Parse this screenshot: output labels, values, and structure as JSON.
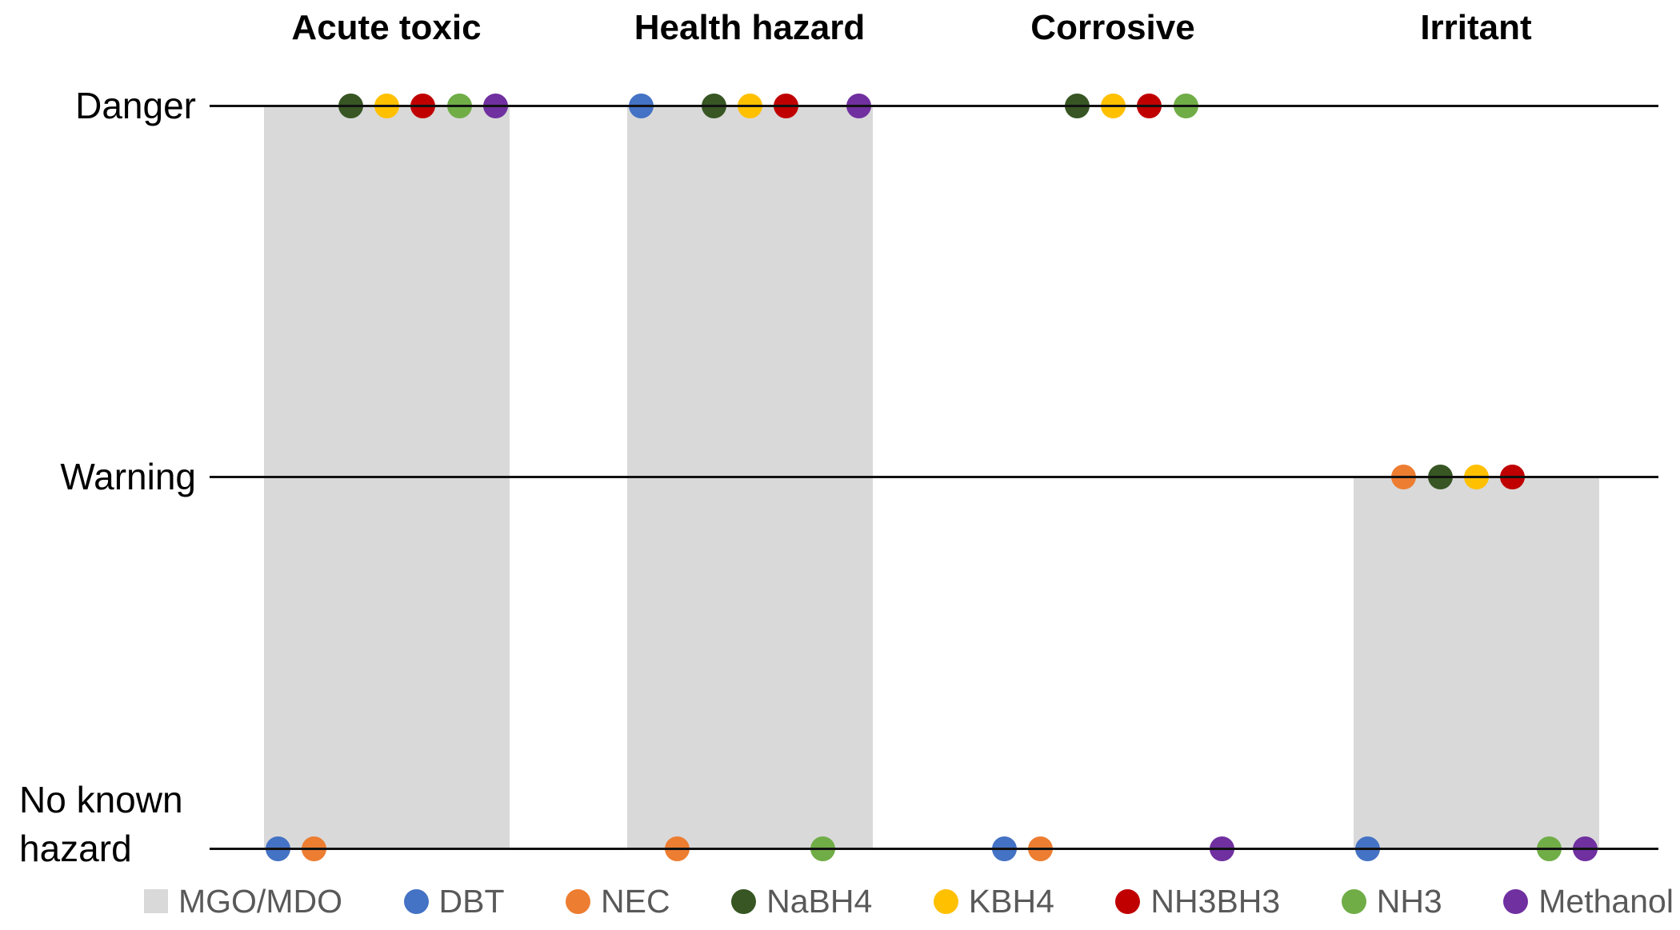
{
  "chart_data": {
    "type": "scatter",
    "title": "",
    "description": "Hazard classification chart: gray bars (MGO/MDO) and colored dots for seven substances across four hazard categories, levels Danger / Warning / No known hazard",
    "categories": [
      "Acute toxic",
      "Health hazard",
      "Corrosive",
      "Irritant"
    ],
    "y_axis": {
      "levels": [
        "Danger",
        "Warning",
        "No known hazard"
      ],
      "no_known_hazard_wrapped": [
        "No known",
        "hazard"
      ]
    },
    "bar_series": {
      "name": "MGO/MDO",
      "color": "#D9D9D9",
      "values": [
        "Danger",
        "Danger",
        null,
        "Warning"
      ]
    },
    "dot_series": [
      {
        "name": "DBT",
        "color": "#4472C4",
        "values": [
          "No known hazard",
          "Danger",
          "No known hazard",
          "No known hazard"
        ]
      },
      {
        "name": "NEC",
        "color": "#ED7D31",
        "values": [
          "No known hazard",
          "No known hazard",
          "No known hazard",
          "Warning"
        ]
      },
      {
        "name": "NaBH4",
        "color": "#375623",
        "values": [
          "Danger",
          "Danger",
          "Danger",
          "Warning"
        ]
      },
      {
        "name": "KBH4",
        "color": "#FFC000",
        "values": [
          "Danger",
          "Danger",
          "Danger",
          "Warning"
        ]
      },
      {
        "name": "NH3BH3",
        "color": "#C00000",
        "values": [
          "Danger",
          "Danger",
          "Danger",
          "Warning"
        ]
      },
      {
        "name": "NH3",
        "color": "#70AD47",
        "values": [
          "Danger",
          "No known hazard",
          "Danger",
          "No known hazard"
        ]
      },
      {
        "name": "Methanol",
        "color": "#7030A0",
        "values": [
          "Danger",
          "Danger",
          "No known hazard",
          "No known hazard"
        ]
      }
    ],
    "legend": [
      {
        "label": "MGO/MDO",
        "marker": "square",
        "color": "#D9D9D9"
      },
      {
        "label": "DBT",
        "marker": "circle",
        "color": "#4472C4"
      },
      {
        "label": "NEC",
        "marker": "circle",
        "color": "#ED7D31"
      },
      {
        "label": "NaBH4",
        "marker": "circle",
        "color": "#375623"
      },
      {
        "label": "KBH4",
        "marker": "circle",
        "color": "#FFC000"
      },
      {
        "label": "NH3BH3",
        "marker": "circle",
        "color": "#C00000"
      },
      {
        "label": "NH3",
        "marker": "circle",
        "color": "#70AD47"
      },
      {
        "label": "Methanol",
        "marker": "circle",
        "color": "#7030A0"
      }
    ],
    "legend_position": "bottom",
    "grid": "horizontal level lines only",
    "axis_text_color": "#000000",
    "legend_text_color": "#595959",
    "line_color": "#111111"
  }
}
